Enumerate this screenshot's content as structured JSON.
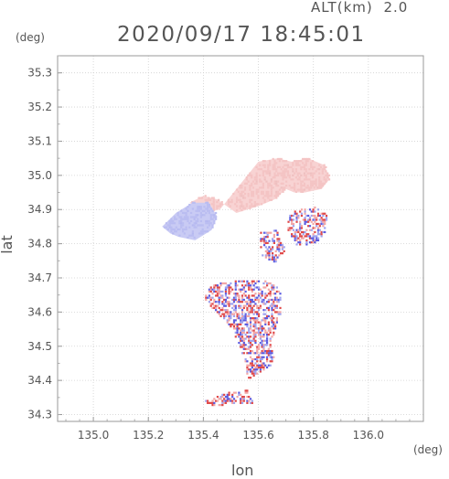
{
  "header": {
    "altitude_label": "ALT(km)",
    "altitude_value": "2.0",
    "timestamp": "2020/09/17 18:45:01"
  },
  "chart_data": {
    "type": "heatmap",
    "title": "2020/09/17 18:45:01",
    "xlabel": "lon",
    "ylabel": "lat",
    "x_unit": "(deg)",
    "y_unit": "(deg)",
    "xlim": [
      134.87,
      136.2
    ],
    "ylim": [
      34.28,
      35.35
    ],
    "x_ticks": [
      "135.0",
      "135.2",
      "135.4",
      "135.6",
      "135.8",
      "136.0"
    ],
    "y_ticks": [
      "34.3",
      "34.4",
      "34.5",
      "34.6",
      "34.7",
      "34.8",
      "34.9",
      "35.0",
      "35.1",
      "35.2",
      "35.3"
    ],
    "grid": true,
    "colors": {
      "positive": "#f2a6a6",
      "negative": "#9fa3ee",
      "strong_positive": "#e04848",
      "strong_negative": "#5a5ae0"
    },
    "regions": [
      {
        "name": "north-positive-area",
        "sign": "positive",
        "points": [
          [
            135.55,
            34.99
          ],
          [
            135.6,
            35.04
          ],
          [
            135.67,
            35.05
          ],
          [
            135.72,
            35.04
          ],
          [
            135.78,
            35.05
          ],
          [
            135.84,
            35.03
          ],
          [
            135.86,
            34.99
          ],
          [
            135.83,
            34.96
          ],
          [
            135.77,
            34.95
          ],
          [
            135.73,
            34.95
          ],
          [
            135.7,
            34.96
          ],
          [
            135.66,
            34.93
          ],
          [
            135.6,
            34.91
          ],
          [
            135.52,
            34.89
          ],
          [
            135.45,
            34.93
          ],
          [
            135.4,
            34.94
          ],
          [
            135.35,
            34.92
          ],
          [
            135.4,
            34.89
          ],
          [
            135.46,
            34.9
          ],
          [
            135.5,
            34.94
          ]
        ]
      },
      {
        "name": "west-negative-area",
        "sign": "negative",
        "points": [
          [
            135.25,
            34.85
          ],
          [
            135.3,
            34.89
          ],
          [
            135.36,
            34.92
          ],
          [
            135.42,
            34.92
          ],
          [
            135.45,
            34.88
          ],
          [
            135.43,
            34.84
          ],
          [
            135.37,
            34.81
          ],
          [
            135.31,
            34.82
          ],
          [
            135.28,
            34.83
          ]
        ]
      },
      {
        "name": "east-scatter-area",
        "sign": "mixed",
        "points": [
          [
            135.71,
            34.89
          ],
          [
            135.8,
            34.91
          ],
          [
            135.85,
            34.88
          ],
          [
            135.84,
            34.82
          ],
          [
            135.8,
            34.8
          ],
          [
            135.74,
            34.79
          ],
          [
            135.7,
            34.84
          ]
        ]
      },
      {
        "name": "central-scatter-area",
        "sign": "mixed",
        "points": [
          [
            135.43,
            34.68
          ],
          [
            135.52,
            34.69
          ],
          [
            135.62,
            34.69
          ],
          [
            135.68,
            34.67
          ],
          [
            135.68,
            34.6
          ],
          [
            135.64,
            34.5
          ],
          [
            135.66,
            34.45
          ],
          [
            135.6,
            34.42
          ],
          [
            135.56,
            34.4
          ],
          [
            135.54,
            34.47
          ],
          [
            135.5,
            34.55
          ],
          [
            135.44,
            34.6
          ],
          [
            135.4,
            34.64
          ]
        ]
      },
      {
        "name": "south-scatter-area",
        "sign": "mixed",
        "points": [
          [
            135.4,
            34.34
          ],
          [
            135.47,
            34.36
          ],
          [
            135.56,
            34.37
          ],
          [
            135.58,
            34.33
          ],
          [
            135.5,
            34.33
          ],
          [
            135.42,
            34.32
          ]
        ]
      },
      {
        "name": "northeast-scatter-area",
        "sign": "mixed",
        "points": [
          [
            135.6,
            34.83
          ],
          [
            135.66,
            34.84
          ],
          [
            135.7,
            34.78
          ],
          [
            135.66,
            34.74
          ],
          [
            135.61,
            34.76
          ]
        ]
      }
    ]
  }
}
